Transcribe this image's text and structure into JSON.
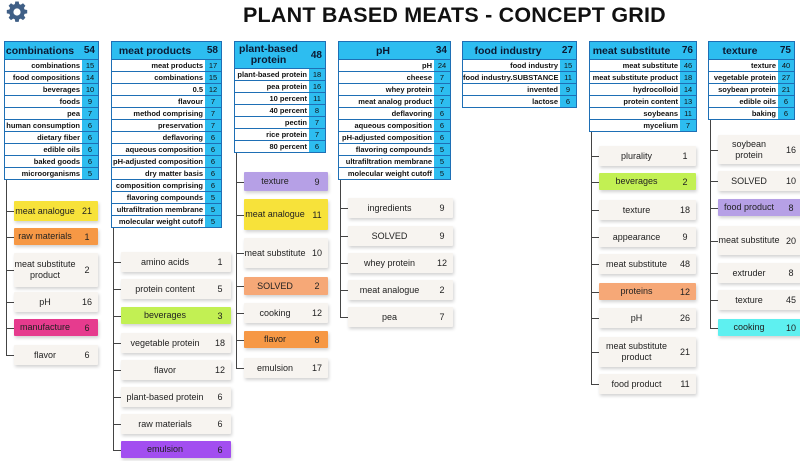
{
  "title": "PLANT BASED MEATS - CONCEPT GRID",
  "settings_icon": "gear-icon",
  "columns": [
    {
      "name": "combinations",
      "count": "54",
      "rows": [
        {
          "term": "combinations",
          "count": "15"
        },
        {
          "term": "food compositions",
          "count": "14"
        },
        {
          "term": "beverages",
          "count": "10"
        },
        {
          "term": "foods",
          "count": "9"
        },
        {
          "term": "pea",
          "count": "7"
        },
        {
          "term": "human consumption",
          "count": "6"
        },
        {
          "term": "dietary fiber",
          "count": "6"
        },
        {
          "term": "edible oils",
          "count": "6"
        },
        {
          "term": "baked goods",
          "count": "6"
        },
        {
          "term": "microorganisms",
          "count": "5"
        }
      ],
      "cards": [
        {
          "label": "meat analogue",
          "count": "21",
          "color": "#f7e23a"
        },
        {
          "label": "raw materials",
          "count": "1",
          "color": "#f69845"
        },
        {
          "label": "meat substitute product",
          "count": "2",
          "color": "#f7f4f0"
        },
        {
          "label": "pH",
          "count": "16",
          "color": "#f7f4f0"
        },
        {
          "label": "manufacture",
          "count": "6",
          "color": "#e63b8e"
        },
        {
          "label": "flavor",
          "count": "6",
          "color": "#f7f4f0"
        }
      ]
    },
    {
      "name": "meat products",
      "count": "58",
      "rows": [
        {
          "term": "meat products",
          "count": "17"
        },
        {
          "term": "combinations",
          "count": "15"
        },
        {
          "term": "0.5",
          "count": "12"
        },
        {
          "term": "flavour",
          "count": "7"
        },
        {
          "term": "method comprising",
          "count": "7"
        },
        {
          "term": "preservation",
          "count": "7"
        },
        {
          "term": "deflavoring",
          "count": "6"
        },
        {
          "term": "aqueous composition",
          "count": "6"
        },
        {
          "term": "pH-adjusted composition",
          "count": "6"
        },
        {
          "term": "dry matter basis",
          "count": "6"
        },
        {
          "term": "composition comprising",
          "count": "6"
        },
        {
          "term": "flavoring compounds",
          "count": "5"
        },
        {
          "term": "ultrafiltration membrane",
          "count": "5"
        },
        {
          "term": "molecular weight cutoff",
          "count": "5"
        }
      ],
      "cards": [
        {
          "label": "amino acids",
          "count": "1",
          "color": "#f7f4f0"
        },
        {
          "label": "protein content",
          "count": "5",
          "color": "#f7f4f0"
        },
        {
          "label": "beverages",
          "count": "3",
          "color": "#c2f053"
        },
        {
          "label": "vegetable protein",
          "count": "18",
          "color": "#f7f4f0"
        },
        {
          "label": "flavor",
          "count": "12",
          "color": "#f7f4f0"
        },
        {
          "label": "plant-based protein",
          "count": "6",
          "color": "#f7f4f0"
        },
        {
          "label": "raw materials",
          "count": "6",
          "color": "#f7f4f0"
        },
        {
          "label": "emulsion",
          "count": "6",
          "color": "#a24ef0"
        }
      ]
    },
    {
      "name": "plant-based protein",
      "count": "48",
      "rows": [
        {
          "term": "plant-based protein",
          "count": "18"
        },
        {
          "term": "pea protein",
          "count": "16"
        },
        {
          "term": "10 percent",
          "count": "11"
        },
        {
          "term": "40 percent",
          "count": "8"
        },
        {
          "term": "pectin",
          "count": "7"
        },
        {
          "term": "rice protein",
          "count": "7"
        },
        {
          "term": "80 percent",
          "count": "6"
        }
      ],
      "cards": [
        {
          "label": "texture",
          "count": "9",
          "color": "#b6a0e6"
        },
        {
          "label": "meat analogue",
          "count": "11",
          "color": "#f7e23a"
        },
        {
          "label": "meat substitute",
          "count": "10",
          "color": "#f7f4f0"
        },
        {
          "label": "SOLVED",
          "count": "2",
          "color": "#f6a877"
        },
        {
          "label": "cooking",
          "count": "12",
          "color": "#f7f4f0"
        },
        {
          "label": "flavor",
          "count": "8",
          "color": "#f69845"
        },
        {
          "label": "emulsion",
          "count": "17",
          "color": "#f7f4f0"
        }
      ]
    },
    {
      "name": "pH",
      "count": "34",
      "rows": [
        {
          "term": "pH",
          "count": "24"
        },
        {
          "term": "cheese",
          "count": "7"
        },
        {
          "term": "whey protein",
          "count": "7"
        },
        {
          "term": "meat analog product",
          "count": "7"
        },
        {
          "term": "deflavoring",
          "count": "6"
        },
        {
          "term": "aqueous composition",
          "count": "6"
        },
        {
          "term": "pH-adjusted composition",
          "count": "6"
        },
        {
          "term": "flavoring compounds",
          "count": "5"
        },
        {
          "term": "ultrafiltration membrane",
          "count": "5"
        },
        {
          "term": "molecular weight cutoff",
          "count": "5"
        }
      ],
      "cards": [
        {
          "label": "ingredients",
          "count": "9",
          "color": "#f7f4f0"
        },
        {
          "label": "SOLVED",
          "count": "9",
          "color": "#f7f4f0"
        },
        {
          "label": "whey protein",
          "count": "12",
          "color": "#f7f4f0"
        },
        {
          "label": "meat analogue",
          "count": "2",
          "color": "#f7f4f0"
        },
        {
          "label": "pea",
          "count": "7",
          "color": "#f7f4f0"
        }
      ]
    },
    {
      "name": "food industry",
      "count": "27",
      "rows": [
        {
          "term": "food industry",
          "count": "15"
        },
        {
          "term": "food industry.SUBSTANCE",
          "count": "11"
        },
        {
          "term": "invented",
          "count": "9"
        },
        {
          "term": "lactose",
          "count": "6"
        }
      ],
      "cards": []
    },
    {
      "name": "meat substitute",
      "count": "76",
      "rows": [
        {
          "term": "meat substitute",
          "count": "46"
        },
        {
          "term": "meat substitute product",
          "count": "18"
        },
        {
          "term": "hydrocolloid",
          "count": "14"
        },
        {
          "term": "protein content",
          "count": "13"
        },
        {
          "term": "soybeans",
          "count": "11"
        },
        {
          "term": "mycelium",
          "count": "7"
        }
      ],
      "cards": [
        {
          "label": "plurality",
          "count": "1",
          "color": "#f7f4f0"
        },
        {
          "label": "beverages",
          "count": "2",
          "color": "#c2f053"
        },
        {
          "label": "texture",
          "count": "18",
          "color": "#f7f4f0"
        },
        {
          "label": "appearance",
          "count": "9",
          "color": "#f7f4f0"
        },
        {
          "label": "meat substitute",
          "count": "48",
          "color": "#f7f4f0"
        },
        {
          "label": "proteins",
          "count": "12",
          "color": "#f6a877"
        },
        {
          "label": "pH",
          "count": "26",
          "color": "#f7f4f0"
        },
        {
          "label": "meat substitute product",
          "count": "21",
          "color": "#f7f4f0"
        },
        {
          "label": "food product",
          "count": "11",
          "color": "#f7f4f0"
        }
      ]
    },
    {
      "name": "texture",
      "count": "75",
      "rows": [
        {
          "term": "texture",
          "count": "40"
        },
        {
          "term": "vegetable protein",
          "count": "27"
        },
        {
          "term": "soybean protein",
          "count": "21"
        },
        {
          "term": "edible oils",
          "count": "6"
        },
        {
          "term": "baking",
          "count": "6"
        }
      ],
      "cards": [
        {
          "label": "soybean protein",
          "count": "16",
          "color": "#f7f4f0"
        },
        {
          "label": "SOLVED",
          "count": "10",
          "color": "#f7f4f0"
        },
        {
          "label": "food product",
          "count": "8",
          "color": "#b6a0e6"
        },
        {
          "label": "meat substitute",
          "count": "20",
          "color": "#f7f4f0"
        },
        {
          "label": "extruder",
          "count": "8",
          "color": "#f7f4f0"
        },
        {
          "label": "texture",
          "count": "45",
          "color": "#f7f4f0"
        },
        {
          "label": "cooking",
          "count": "10",
          "color": "#5ef0f0"
        }
      ]
    }
  ]
}
